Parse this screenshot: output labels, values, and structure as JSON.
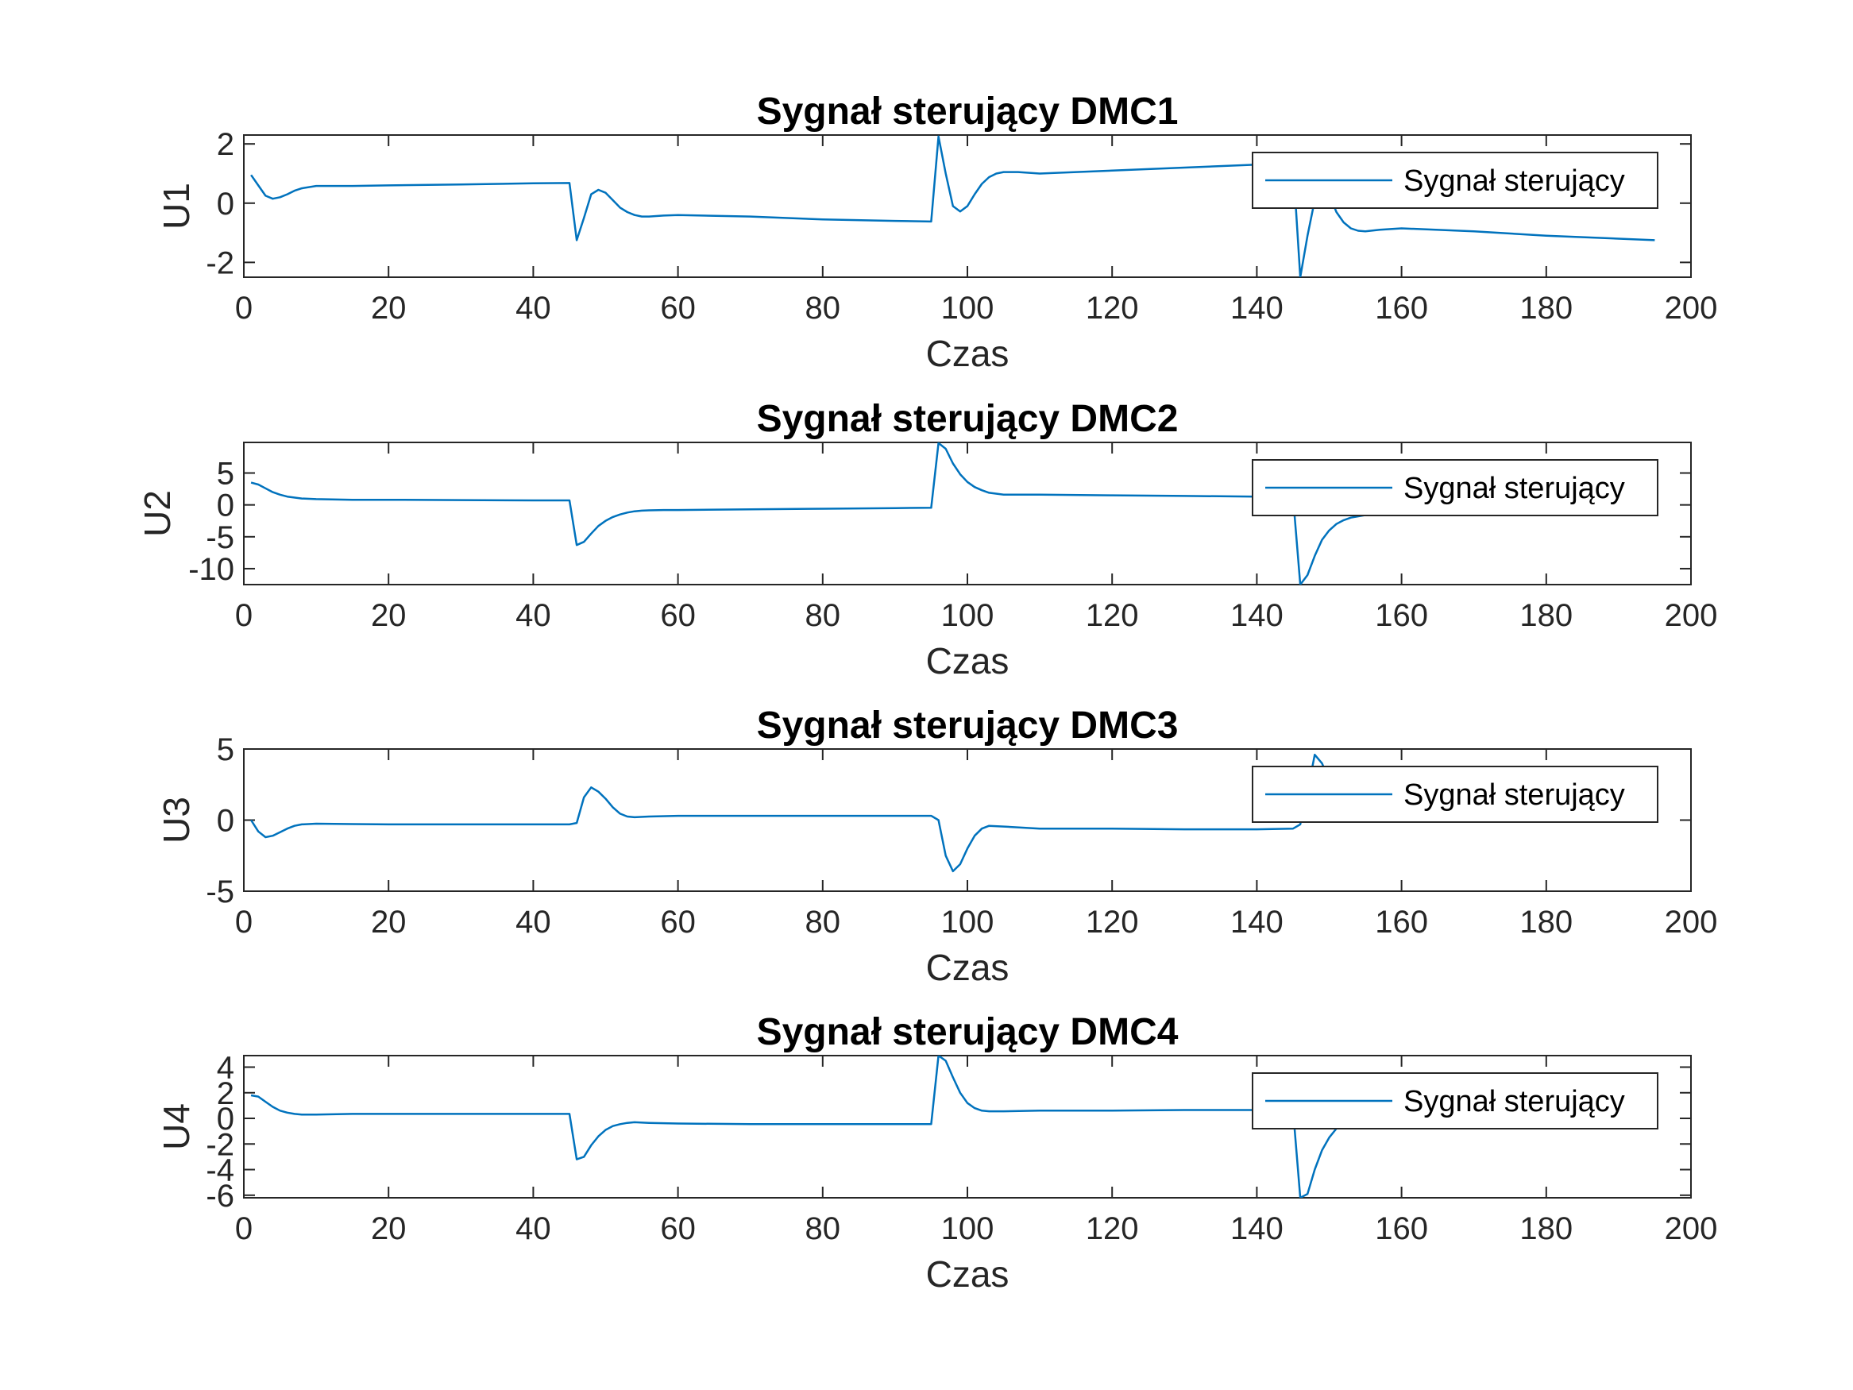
{
  "colors": {
    "series": "#0072BD",
    "axes": "#262626",
    "background": "#ffffff"
  },
  "chart_data": [
    {
      "type": "line",
      "title": "Sygnał sterujący DMC1",
      "xlabel": "Czas",
      "ylabel": "U1",
      "xlim": [
        0,
        200
      ],
      "ylim": [
        -2.5,
        2.3
      ],
      "xticks": [
        0,
        20,
        40,
        60,
        80,
        100,
        120,
        140,
        160,
        180,
        200
      ],
      "xtick_labels": [
        "0",
        "20",
        "40",
        "60",
        "80",
        "100",
        "120",
        "140",
        "160",
        "180",
        "200"
      ],
      "yticks": [
        -2,
        0,
        2
      ],
      "ytick_labels": [
        "-2",
        "0",
        "2"
      ],
      "legend": "Sygnał sterujący",
      "legend_location": "top-right",
      "series": [
        {
          "name": "Sygnał sterujący",
          "x": [
            1,
            2,
            3,
            4,
            5,
            6,
            7,
            8,
            10,
            15,
            20,
            30,
            40,
            45,
            46,
            47,
            48,
            49,
            50,
            51,
            52,
            53,
            54,
            55,
            56,
            58,
            60,
            70,
            80,
            90,
            95,
            96,
            97,
            98,
            99,
            100,
            101,
            102,
            103,
            104,
            105,
            107,
            110,
            120,
            130,
            140,
            145,
            146,
            147,
            148,
            149,
            150,
            151,
            152,
            153,
            154,
            155,
            157,
            160,
            170,
            180,
            190,
            195
          ],
          "y": [
            0.95,
            0.6,
            0.25,
            0.15,
            0.2,
            0.3,
            0.42,
            0.5,
            0.58,
            0.58,
            0.6,
            0.63,
            0.67,
            0.68,
            -1.25,
            -0.5,
            0.3,
            0.45,
            0.35,
            0.1,
            -0.15,
            -0.3,
            -0.4,
            -0.45,
            -0.45,
            -0.42,
            -0.4,
            -0.45,
            -0.55,
            -0.6,
            -0.62,
            2.25,
            1.0,
            -0.1,
            -0.28,
            -0.1,
            0.3,
            0.65,
            0.88,
            1.0,
            1.05,
            1.05,
            1.0,
            1.1,
            1.2,
            1.3,
            1.35,
            -2.5,
            -1.1,
            0.1,
            0.55,
            0.3,
            -0.3,
            -0.65,
            -0.85,
            -0.93,
            -0.95,
            -0.9,
            -0.85,
            -0.95,
            -1.1,
            -1.2,
            -1.25
          ]
        }
      ]
    },
    {
      "type": "line",
      "title": "Sygnał sterujący DMC2",
      "xlabel": "Czas",
      "ylabel": "U2",
      "xlim": [
        0,
        200
      ],
      "ylim": [
        -12.5,
        9.8
      ],
      "xticks": [
        0,
        20,
        40,
        60,
        80,
        100,
        120,
        140,
        160,
        180,
        200
      ],
      "xtick_labels": [
        "0",
        "20",
        "40",
        "60",
        "80",
        "100",
        "120",
        "140",
        "160",
        "180",
        "200"
      ],
      "yticks": [
        -10,
        -5,
        0,
        5
      ],
      "ytick_labels": [
        "-10",
        "-5",
        "0",
        "5"
      ],
      "legend": "Sygnał sterujący",
      "legend_location": "top-right",
      "series": [
        {
          "name": "Sygnał sterujący",
          "x": [
            1,
            2,
            3,
            4,
            5,
            6,
            8,
            10,
            15,
            20,
            30,
            40,
            45,
            46,
            47,
            48,
            49,
            50,
            51,
            52,
            53,
            54,
            55,
            56,
            58,
            60,
            70,
            80,
            90,
            95,
            96,
            97,
            98,
            99,
            100,
            101,
            102,
            103,
            105,
            110,
            120,
            130,
            140,
            145,
            146,
            147,
            148,
            149,
            150,
            151,
            152,
            153,
            155,
            157,
            160,
            170,
            180,
            190,
            195
          ],
          "y": [
            3.5,
            3.2,
            2.6,
            2.0,
            1.6,
            1.3,
            1.0,
            0.9,
            0.8,
            0.8,
            0.75,
            0.7,
            0.7,
            -6.3,
            -5.8,
            -4.5,
            -3.3,
            -2.5,
            -1.9,
            -1.5,
            -1.2,
            -1.0,
            -0.9,
            -0.85,
            -0.8,
            -0.8,
            -0.7,
            -0.6,
            -0.5,
            -0.45,
            9.7,
            8.8,
            6.5,
            4.8,
            3.6,
            2.8,
            2.3,
            1.9,
            1.6,
            1.6,
            1.5,
            1.4,
            1.3,
            1.25,
            -12.5,
            -11.0,
            -8.0,
            -5.5,
            -4.0,
            -3.0,
            -2.4,
            -2.0,
            -1.6,
            -1.5,
            -1.4,
            -1.3,
            -1.2,
            -1.1,
            -1.0
          ]
        }
      ]
    },
    {
      "type": "line",
      "title": "Sygnał sterujący DMC3",
      "xlabel": "Czas",
      "ylabel": "U3",
      "xlim": [
        0,
        200
      ],
      "ylim": [
        -5,
        5
      ],
      "xticks": [
        0,
        20,
        40,
        60,
        80,
        100,
        120,
        140,
        160,
        180,
        200
      ],
      "xtick_labels": [
        "0",
        "20",
        "40",
        "60",
        "80",
        "100",
        "120",
        "140",
        "160",
        "180",
        "200"
      ],
      "yticks": [
        -5,
        0,
        5
      ],
      "ytick_labels": [
        "-5",
        "0",
        "5"
      ],
      "legend": "Sygnał sterujący",
      "legend_location": "top-right",
      "series": [
        {
          "name": "Sygnał sterujący",
          "x": [
            1,
            2,
            3,
            4,
            5,
            6,
            7,
            8,
            10,
            15,
            20,
            30,
            40,
            45,
            46,
            47,
            48,
            49,
            50,
            51,
            52,
            53,
            54,
            56,
            60,
            70,
            80,
            90,
            95,
            96,
            97,
            98,
            99,
            100,
            101,
            102,
            103,
            105,
            110,
            120,
            130,
            140,
            145,
            146,
            147,
            148,
            149,
            150,
            151,
            152,
            153,
            155,
            160,
            170,
            180,
            190,
            195
          ],
          "y": [
            0.0,
            -0.8,
            -1.2,
            -1.1,
            -0.85,
            -0.6,
            -0.4,
            -0.3,
            -0.25,
            -0.28,
            -0.3,
            -0.3,
            -0.3,
            -0.3,
            -0.2,
            1.6,
            2.3,
            2.0,
            1.5,
            0.9,
            0.45,
            0.25,
            0.2,
            0.25,
            0.3,
            0.3,
            0.3,
            0.3,
            0.3,
            0.0,
            -2.5,
            -3.6,
            -3.1,
            -2.0,
            -1.1,
            -0.6,
            -0.4,
            -0.45,
            -0.6,
            -0.6,
            -0.65,
            -0.65,
            -0.6,
            -0.3,
            2.0,
            4.6,
            4.0,
            2.8,
            1.8,
            1.2,
            0.9,
            0.8,
            0.75,
            0.8,
            0.85,
            0.9,
            0.9
          ]
        }
      ]
    },
    {
      "type": "line",
      "title": "Sygnał sterujący DMC4",
      "xlabel": "Czas",
      "ylabel": "U4",
      "xlim": [
        0,
        200
      ],
      "ylim": [
        -6.2,
        4.9
      ],
      "xticks": [
        0,
        20,
        40,
        60,
        80,
        100,
        120,
        140,
        160,
        180,
        200
      ],
      "xtick_labels": [
        "0",
        "20",
        "40",
        "60",
        "80",
        "100",
        "120",
        "140",
        "160",
        "180",
        "200"
      ],
      "yticks": [
        -6,
        -4,
        -2,
        0,
        2,
        4
      ],
      "ytick_labels": [
        "-6",
        "-4",
        "-2",
        "0",
        "2",
        "4"
      ],
      "legend": "Sygnał sterujący",
      "legend_location": "top-right",
      "series": [
        {
          "name": "Sygnał sterujący",
          "x": [
            1,
            2,
            3,
            4,
            5,
            6,
            7,
            8,
            10,
            15,
            20,
            30,
            40,
            45,
            46,
            47,
            48,
            49,
            50,
            51,
            52,
            53,
            54,
            56,
            60,
            70,
            80,
            90,
            95,
            96,
            97,
            98,
            99,
            100,
            101,
            102,
            103,
            105,
            110,
            120,
            130,
            140,
            145,
            146,
            147,
            148,
            149,
            150,
            151,
            152,
            153,
            155,
            160,
            170,
            180,
            190,
            195
          ],
          "y": [
            1.8,
            1.7,
            1.3,
            0.9,
            0.6,
            0.45,
            0.35,
            0.3,
            0.3,
            0.35,
            0.35,
            0.35,
            0.35,
            0.35,
            -3.2,
            -3.0,
            -2.1,
            -1.4,
            -0.9,
            -0.6,
            -0.45,
            -0.35,
            -0.3,
            -0.35,
            -0.4,
            -0.45,
            -0.45,
            -0.45,
            -0.45,
            4.9,
            4.5,
            3.2,
            2.0,
            1.2,
            0.8,
            0.6,
            0.55,
            0.55,
            0.6,
            0.6,
            0.65,
            0.65,
            0.65,
            -6.2,
            -5.9,
            -4.0,
            -2.5,
            -1.5,
            -0.8,
            -0.4,
            -0.2,
            -0.15,
            -0.1,
            -0.15,
            -0.2,
            -0.2,
            -0.2
          ]
        }
      ]
    }
  ]
}
